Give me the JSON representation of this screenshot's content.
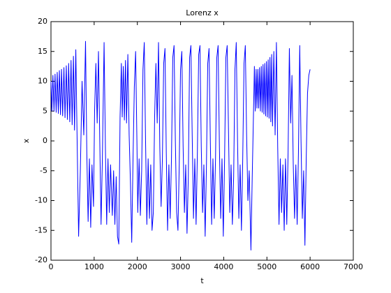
{
  "chart_data": {
    "type": "line",
    "title": "Lorenz x",
    "x_label": "t",
    "y_label": "x",
    "x": [
      0,
      20,
      45,
      70,
      95,
      120,
      145,
      170,
      195,
      220,
      245,
      270,
      300,
      325,
      355,
      380,
      410,
      435,
      465,
      490,
      520,
      545,
      575,
      610,
      640,
      680,
      720,
      760,
      800,
      830,
      860,
      890,
      920,
      950,
      985,
      1010,
      1040,
      1070,
      1100,
      1130,
      1160,
      1190,
      1230,
      1260,
      1290,
      1320,
      1350,
      1380,
      1420,
      1450,
      1480,
      1510,
      1540,
      1570,
      1600,
      1630,
      1650,
      1675,
      1700,
      1725,
      1750,
      1780,
      1810,
      1840,
      1870,
      1900,
      1930,
      1960,
      1990,
      2010,
      2040,
      2070,
      2100,
      2130,
      2160,
      2190,
      2220,
      2250,
      2280,
      2310,
      2340,
      2370,
      2400,
      2430,
      2460,
      2490,
      2520,
      2550,
      2580,
      2610,
      2640,
      2670,
      2700,
      2730,
      2760,
      2790,
      2820,
      2850,
      2880,
      2910,
      2940,
      2970,
      3000,
      3030,
      3060,
      3090,
      3120,
      3150,
      3180,
      3210,
      3240,
      3270,
      3300,
      3330,
      3360,
      3390,
      3420,
      3450,
      3480,
      3510,
      3540,
      3570,
      3600,
      3630,
      3660,
      3690,
      3720,
      3750,
      3780,
      3810,
      3840,
      3870,
      3900,
      3930,
      3960,
      3990,
      4020,
      4050,
      4080,
      4110,
      4140,
      4170,
      4200,
      4230,
      4260,
      4290,
      4320,
      4350,
      4380,
      4410,
      4440,
      4470,
      4500,
      4530,
      4560,
      4590,
      4630,
      4660,
      4690,
      4710,
      4730,
      4750,
      4770,
      4790,
      4810,
      4830,
      4850,
      4870,
      4890,
      4910,
      4930,
      4950,
      4970,
      4990,
      5010,
      5030,
      5050,
      5070,
      5090,
      5110,
      5130,
      5160,
      5190,
      5220,
      5250,
      5280,
      5310,
      5340,
      5370,
      5400,
      5430,
      5460,
      5490,
      5520,
      5550,
      5580,
      5610,
      5640,
      5670,
      5700,
      5730,
      5760,
      5790,
      5820,
      5850,
      5880,
      5910,
      5940,
      5970,
      6000
    ],
    "series": [
      {
        "color": "#0000ff",
        "values": [
          10,
          5,
          11,
          5,
          11.2,
          4.8,
          11.5,
          4.6,
          11.8,
          4.4,
          12,
          4.2,
          12.3,
          3.9,
          12.6,
          3.6,
          13,
          3.2,
          13.5,
          2.7,
          14.2,
          1.8,
          15.3,
          -2,
          -16,
          -5,
          10,
          1,
          16.7,
          -2,
          -13.5,
          -3,
          -14.5,
          -4,
          -11,
          5,
          13,
          3,
          15,
          0,
          -14,
          -3,
          16.5,
          -1,
          -14,
          -3,
          -12,
          -4,
          -12.5,
          -5,
          -14,
          -6,
          -16,
          -17.3,
          4,
          13,
          4,
          12.5,
          3.5,
          13.5,
          3,
          14.5,
          1,
          -7,
          -17,
          -3,
          9,
          15,
          0,
          -12,
          -3,
          -12.5,
          -5,
          12,
          16.5,
          0,
          -14,
          -3,
          -13,
          -4,
          -15,
          -12,
          4,
          13,
          3,
          16.5,
          -1,
          -11,
          -3,
          13,
          15.5,
          -2,
          -15,
          -4,
          -13,
          -3,
          14,
          16,
          0,
          -12,
          -15,
          -4,
          12,
          15,
          -1,
          -12,
          -4,
          -15.5,
          -6,
          14,
          16,
          1,
          -13,
          -3,
          -14,
          -2,
          14.5,
          16,
          -1,
          -12,
          -4,
          -16,
          -4,
          13,
          15.5,
          0,
          -14,
          -3,
          -13,
          -3,
          14,
          16,
          -1,
          -13,
          -3,
          -16,
          -3,
          14,
          16,
          2,
          -12,
          -4,
          -14,
          -6,
          12,
          16.5,
          0,
          -13,
          -4,
          -15,
          -3,
          13,
          16,
          1,
          -10,
          -5,
          -18.3,
          -6,
          5,
          12.5,
          5,
          12,
          5.5,
          12,
          5.5,
          12.3,
          5,
          12.5,
          4.8,
          12.8,
          4.5,
          13,
          4.2,
          13.3,
          4,
          13.6,
          3.8,
          14,
          3.2,
          14.5,
          2.5,
          15,
          1,
          16.5,
          -1,
          -14,
          -3,
          -12,
          -4,
          -15,
          -3,
          -14,
          -2,
          15.5,
          3,
          11,
          -4,
          -13,
          -4,
          -14,
          -2,
          16,
          0,
          -13,
          -5,
          -17.5,
          -3,
          8,
          11,
          12
        ]
      }
    ],
    "xlim": [
      0,
      7000
    ],
    "xticks": [
      0,
      1000,
      2000,
      3000,
      4000,
      5000,
      6000,
      7000
    ],
    "ylim": [
      -20,
      20
    ],
    "yticks": [
      -20,
      -15,
      -10,
      -5,
      0,
      5,
      10,
      15,
      20
    ],
    "grid": false
  }
}
